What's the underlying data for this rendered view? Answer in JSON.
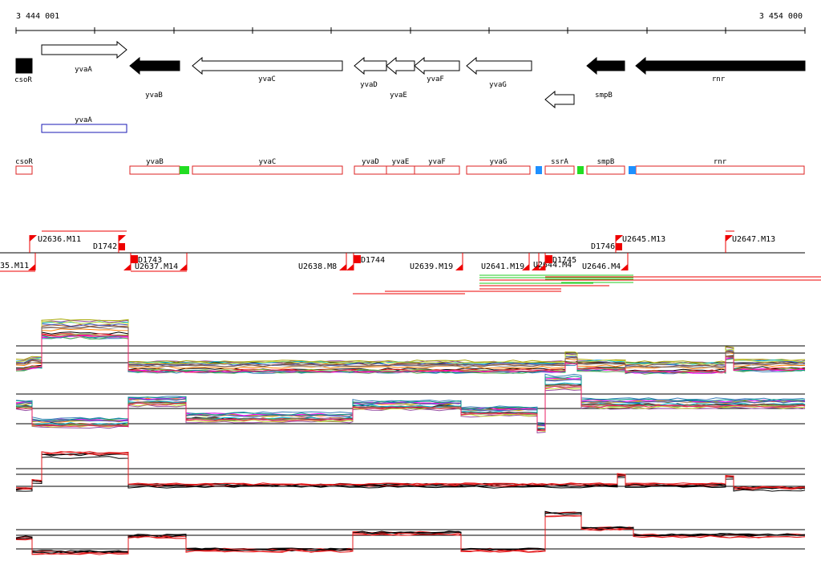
{
  "coordinates": {
    "start": "3 444 001",
    "end": "3 454 000"
  },
  "colors": {
    "black": "#000000",
    "feature_box": "#dd2222",
    "anno_box": "#1a1ab4",
    "red_marker": "#ee0000",
    "green_block": "#22dd22",
    "blue_block": "#1e90ff",
    "green_line": "#22cc22"
  },
  "genes_forward": [
    {
      "name": "yvaA",
      "label": "yvaA",
      "style": "open"
    }
  ],
  "genes_reverse": [
    {
      "name": "csoR",
      "label": "csoR",
      "style": "filled"
    },
    {
      "name": "yvaB",
      "label": "yvaB",
      "style": "filled"
    },
    {
      "name": "yvaC",
      "label": "yvaC",
      "style": "open"
    },
    {
      "name": "yvaD",
      "label": "yvaD",
      "style": "open"
    },
    {
      "name": "yvaE",
      "label": "yvaE",
      "style": "open"
    },
    {
      "name": "yvaF",
      "label": "yvaF",
      "style": "open"
    },
    {
      "name": "yvaG",
      "label": "yvaG",
      "style": "open"
    },
    {
      "name": "ssrA",
      "label": "",
      "style": "open"
    },
    {
      "name": "smpB",
      "label": "smpB",
      "style": "filled"
    },
    {
      "name": "rnr",
      "label": "rnr",
      "style": "filled"
    }
  ],
  "annotation_track": [
    {
      "label": "yvaA"
    }
  ],
  "feature_track": [
    {
      "label": "csoR"
    },
    {
      "label": "yvaB"
    },
    {
      "label": "yvaC"
    },
    {
      "label": "yvaD"
    },
    {
      "label": "yvaE"
    },
    {
      "label": "yvaF"
    },
    {
      "label": "yvaG"
    },
    {
      "label": "ssrA"
    },
    {
      "label": "smpB"
    },
    {
      "label": "rnr"
    }
  ],
  "tss_upper": [
    {
      "label": "U2636.M11"
    },
    {
      "label": "D1742"
    },
    {
      "label": "D1746"
    },
    {
      "label": "U2645.M13"
    },
    {
      "label": "U2647.M13"
    }
  ],
  "tss_lower": [
    {
      "label": "35.M11"
    },
    {
      "label": "D1743"
    },
    {
      "label": "U2637.M14"
    },
    {
      "label": "U2638.M8"
    },
    {
      "label": "D1744"
    },
    {
      "label": "U2639.M19"
    },
    {
      "label": "U2641.M19"
    },
    {
      "label": "U2644.M4"
    },
    {
      "label": "D1745"
    },
    {
      "label": "U2646.M4"
    }
  ],
  "expression_panels": [
    {
      "name": "forward-multi-condition",
      "line_count": 18
    },
    {
      "name": "reverse-multi-condition",
      "line_count": 18
    },
    {
      "name": "forward-selected",
      "line_count": 6
    },
    {
      "name": "reverse-selected",
      "line_count": 6
    }
  ]
}
